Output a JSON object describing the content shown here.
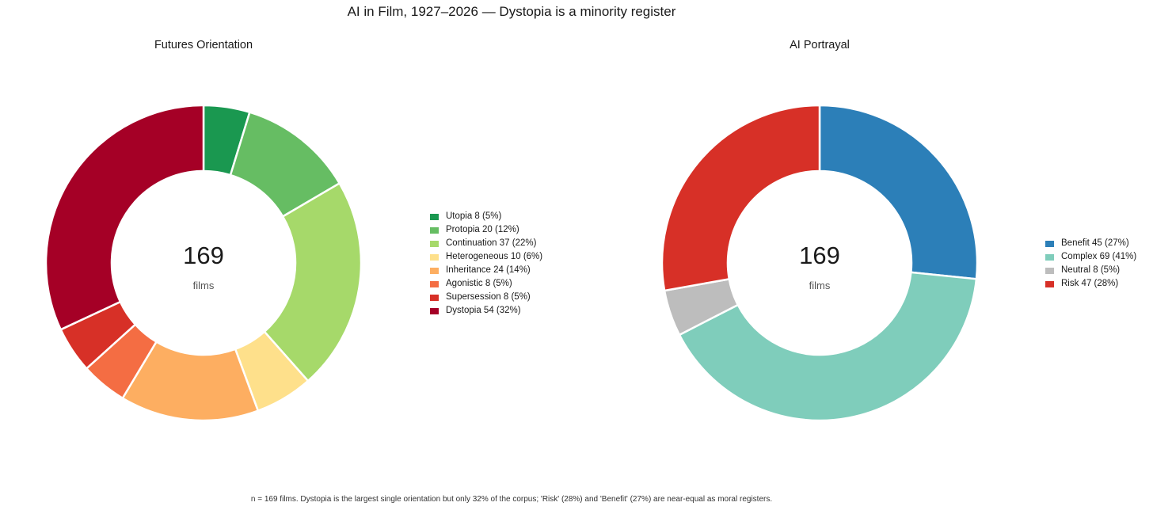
{
  "title": "AI in Film, 1927–2026  —  Dystopia is a minority register",
  "caption": "n = 169 films.  Dystopia is the largest single orientation but only 32% of the corpus; 'Risk' (28%) and 'Benefit' (27%) are near-equal as moral registers.",
  "chart_data": [
    {
      "type": "pie",
      "style": "donut",
      "title": "Futures Orientation",
      "center_value": "169",
      "center_label": "films",
      "legend_position": "right",
      "slices": [
        {
          "label": "Utopia",
          "value": 8,
          "percent": "5%",
          "legend_text": "Utopia  8 (5%)",
          "color": "#1a9850"
        },
        {
          "label": "Protopia",
          "value": 20,
          "percent": "12%",
          "legend_text": "Protopia  20 (12%)",
          "color": "#66bd63"
        },
        {
          "label": "Continuation",
          "value": 37,
          "percent": "22%",
          "legend_text": "Continuation  37 (22%)",
          "color": "#a6d96a"
        },
        {
          "label": "Heterogeneous",
          "value": 10,
          "percent": "6%",
          "legend_text": "Heterogeneous  10 (6%)",
          "color": "#fee08b"
        },
        {
          "label": "Inheritance",
          "value": 24,
          "percent": "14%",
          "legend_text": "Inheritance  24 (14%)",
          "color": "#fdae61"
        },
        {
          "label": "Agonistic",
          "value": 8,
          "percent": "5%",
          "legend_text": "Agonistic  8 (5%)",
          "color": "#f46d43"
        },
        {
          "label": "Supersession",
          "value": 8,
          "percent": "5%",
          "legend_text": "Supersession  8 (5%)",
          "color": "#d73027"
        },
        {
          "label": "Dystopia",
          "value": 54,
          "percent": "32%",
          "legend_text": "Dystopia  54 (32%)",
          "color": "#a50026"
        }
      ]
    },
    {
      "type": "pie",
      "style": "donut",
      "title": "AI Portrayal",
      "center_value": "169",
      "center_label": "films",
      "legend_position": "right",
      "slices": [
        {
          "label": "Benefit",
          "value": 45,
          "percent": "27%",
          "legend_text": "Benefit  45 (27%)",
          "color": "#2c7fb8"
        },
        {
          "label": "Complex",
          "value": 69,
          "percent": "41%",
          "legend_text": "Complex  69 (41%)",
          "color": "#7fcdbb"
        },
        {
          "label": "Neutral",
          "value": 8,
          "percent": "5%",
          "legend_text": "Neutral  8 (5%)",
          "color": "#bdbdbd"
        },
        {
          "label": "Risk",
          "value": 47,
          "percent": "28%",
          "legend_text": "Risk  47 (28%)",
          "color": "#d73027"
        }
      ]
    }
  ]
}
